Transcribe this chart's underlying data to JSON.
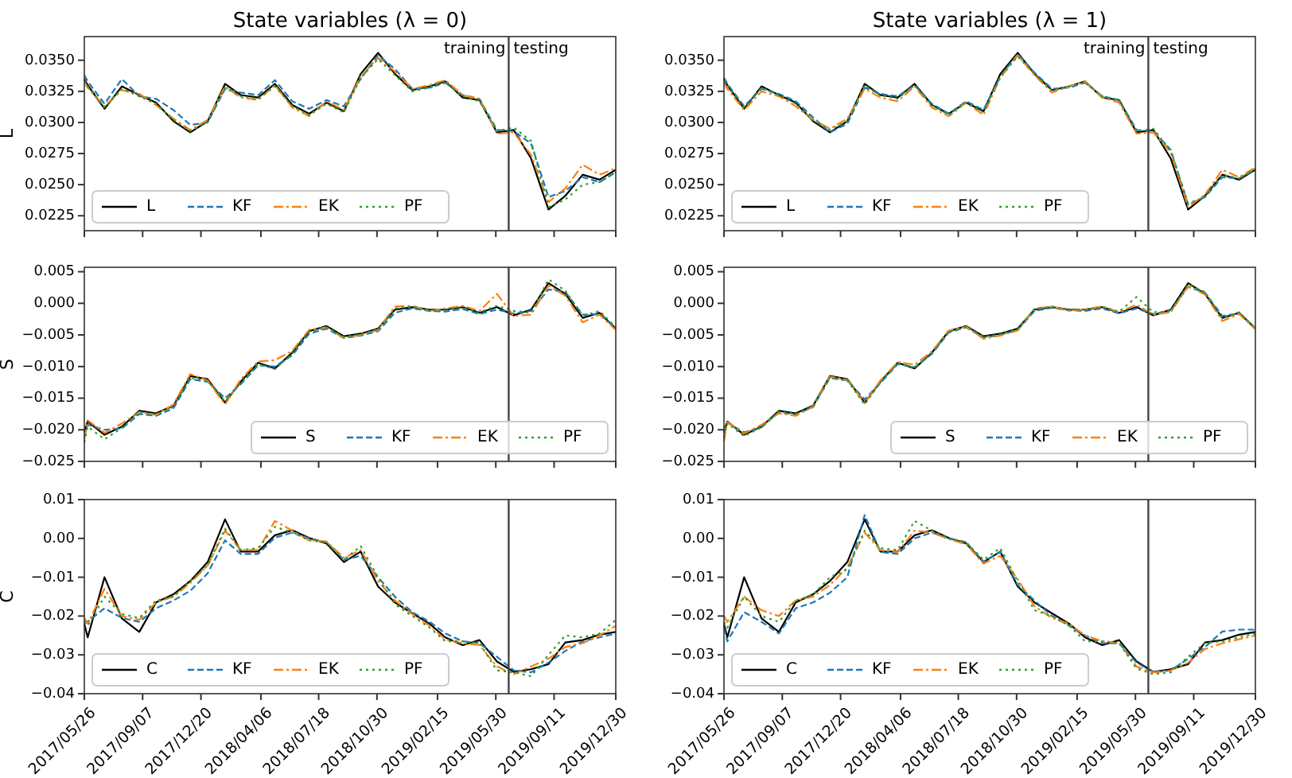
{
  "chart_data": [
    {
      "type": "line",
      "title": "State variables (λ = 0)",
      "ylabel": "L",
      "x": [
        "2017-05-26",
        "2017-06-01",
        "2017-07-01",
        "2017-08-01",
        "2017-09-01",
        "2017-10-01",
        "2017-11-01",
        "2017-12-01",
        "2018-01-01",
        "2018-02-01",
        "2018-03-01",
        "2018-04-01",
        "2018-05-01",
        "2018-06-01",
        "2018-07-01",
        "2018-08-01",
        "2018-09-01",
        "2018-10-01",
        "2018-11-01",
        "2018-12-01",
        "2019-01-01",
        "2019-02-01",
        "2019-03-01",
        "2019-04-01",
        "2019-05-01",
        "2019-06-01",
        "2019-07-01",
        "2019-08-01",
        "2019-09-01",
        "2019-10-01",
        "2019-11-01",
        "2019-12-01",
        "2019-12-30"
      ],
      "xlim": [
        "2017-05-26",
        "2019-12-30"
      ],
      "xticks": [
        {
          "value": "2017-05-26",
          "label": null
        },
        {
          "value": "2017-09-07",
          "label": null
        },
        {
          "value": "2017-12-20",
          "label": null
        },
        {
          "value": "2018-04-06",
          "label": null
        },
        {
          "value": "2018-07-18",
          "label": null
        },
        {
          "value": "2018-10-30",
          "label": null
        },
        {
          "value": "2019-02-15",
          "label": null
        },
        {
          "value": "2019-05-30",
          "label": null
        },
        {
          "value": "2019-09-11",
          "label": null
        },
        {
          "value": "2019-12-30",
          "label": null
        }
      ],
      "ylim": [
        0.0213,
        0.0369
      ],
      "yticks": [
        {
          "value": 0.0225,
          "label": "0.0225"
        },
        {
          "value": 0.025,
          "label": "0.0250"
        },
        {
          "value": 0.0275,
          "label": "0.0275"
        },
        {
          "value": 0.03,
          "label": "0.0300"
        },
        {
          "value": 0.0325,
          "label": "0.0325"
        },
        {
          "value": 0.035,
          "label": "0.0350"
        }
      ],
      "tick_labels": "y",
      "legend": "bottom left",
      "ref_lines": [
        {
          "axis": "x",
          "value": "2019-06-22",
          "color": "#444444"
        }
      ],
      "annotations": [
        "training",
        "testing"
      ],
      "series": [
        {
          "name": "L",
          "color": "#000000",
          "line_style": "solid",
          "values": [
            0.0335,
            0.033,
            0.0311,
            0.0329,
            0.0322,
            0.0316,
            0.0301,
            0.0292,
            0.0301,
            0.0331,
            0.0322,
            0.032,
            0.0331,
            0.0314,
            0.0307,
            0.0316,
            0.0309,
            0.0339,
            0.0356,
            0.0339,
            0.0326,
            0.0329,
            0.0333,
            0.032,
            0.0318,
            0.0292,
            0.0294,
            0.0271,
            0.023,
            0.0241,
            0.0258,
            0.0254,
            0.0262
          ]
        },
        {
          "name": "KF",
          "color": "#1f77b4",
          "line_style": "dashed",
          "values": [
            0.0338,
            0.0333,
            0.0315,
            0.0335,
            0.0321,
            0.0319,
            0.031,
            0.0298,
            0.03,
            0.0327,
            0.0324,
            0.0322,
            0.0334,
            0.0317,
            0.0311,
            0.0318,
            0.0313,
            0.0335,
            0.0354,
            0.0343,
            0.0327,
            0.0328,
            0.0332,
            0.0322,
            0.0319,
            0.0294,
            0.0293,
            0.0283,
            0.024,
            0.0245,
            0.0256,
            0.0252,
            0.026
          ]
        },
        {
          "name": "EK",
          "color": "#ff7f0e",
          "line_style": "dashdot",
          "values": [
            0.0333,
            0.0328,
            0.0313,
            0.0326,
            0.0323,
            0.0314,
            0.0303,
            0.0294,
            0.0302,
            0.0329,
            0.032,
            0.0318,
            0.033,
            0.0312,
            0.0305,
            0.0317,
            0.031,
            0.0337,
            0.0352,
            0.0341,
            0.0327,
            0.033,
            0.0334,
            0.0322,
            0.0319,
            0.0291,
            0.0292,
            0.0274,
            0.0236,
            0.0247,
            0.0266,
            0.0258,
            0.0263
          ]
        },
        {
          "name": "PF",
          "color": "#2ca02c",
          "line_style": "dotted",
          "values": [
            0.0334,
            0.0329,
            0.0312,
            0.0327,
            0.0321,
            0.0315,
            0.0302,
            0.0293,
            0.03,
            0.0328,
            0.0321,
            0.0319,
            0.0329,
            0.0313,
            0.0306,
            0.0315,
            0.0308,
            0.0336,
            0.0351,
            0.0338,
            0.0325,
            0.0328,
            0.0332,
            0.0321,
            0.0317,
            0.0293,
            0.0296,
            0.0285,
            0.0232,
            0.0238,
            0.025,
            0.0252,
            0.026
          ]
        }
      ]
    },
    {
      "type": "line",
      "title": "State variables (λ = 1)",
      "x": [
        "2017-05-26",
        "2017-06-01",
        "2017-07-01",
        "2017-08-01",
        "2017-09-01",
        "2017-10-01",
        "2017-11-01",
        "2017-12-01",
        "2018-01-01",
        "2018-02-01",
        "2018-03-01",
        "2018-04-01",
        "2018-05-01",
        "2018-06-01",
        "2018-07-01",
        "2018-08-01",
        "2018-09-01",
        "2018-10-01",
        "2018-11-01",
        "2018-12-01",
        "2019-01-01",
        "2019-02-01",
        "2019-03-01",
        "2019-04-01",
        "2019-05-01",
        "2019-06-01",
        "2019-07-01",
        "2019-08-01",
        "2019-09-01",
        "2019-10-01",
        "2019-11-01",
        "2019-12-01",
        "2019-12-30"
      ],
      "xlim": [
        "2017-05-26",
        "2019-12-30"
      ],
      "xticks": [
        {
          "value": "2017-05-26",
          "label": null
        },
        {
          "value": "2017-09-07",
          "label": null
        },
        {
          "value": "2017-12-20",
          "label": null
        },
        {
          "value": "2018-04-06",
          "label": null
        },
        {
          "value": "2018-07-18",
          "label": null
        },
        {
          "value": "2018-10-30",
          "label": null
        },
        {
          "value": "2019-02-15",
          "label": null
        },
        {
          "value": "2019-05-30",
          "label": null
        },
        {
          "value": "2019-09-11",
          "label": null
        },
        {
          "value": "2019-12-30",
          "label": null
        }
      ],
      "ylim": [
        0.0213,
        0.0369
      ],
      "yticks": [
        {
          "value": 0.0225,
          "label": "0.0225"
        },
        {
          "value": 0.025,
          "label": "0.0250"
        },
        {
          "value": 0.0275,
          "label": "0.0275"
        },
        {
          "value": 0.03,
          "label": "0.0300"
        },
        {
          "value": 0.0325,
          "label": "0.0325"
        },
        {
          "value": 0.035,
          "label": "0.0350"
        }
      ],
      "tick_labels": "y",
      "legend": "bottom left",
      "ref_lines": [
        {
          "axis": "x",
          "value": "2019-06-22",
          "color": "#444444"
        }
      ],
      "annotations": [
        "training",
        "testing"
      ],
      "series": [
        {
          "name": "L",
          "color": "#000000",
          "line_style": "solid",
          "values": [
            0.0335,
            0.033,
            0.0311,
            0.0329,
            0.0322,
            0.0316,
            0.0301,
            0.0292,
            0.0301,
            0.0331,
            0.0322,
            0.032,
            0.0331,
            0.0314,
            0.0307,
            0.0316,
            0.0309,
            0.0339,
            0.0356,
            0.0339,
            0.0326,
            0.0329,
            0.0333,
            0.032,
            0.0318,
            0.0292,
            0.0294,
            0.0271,
            0.023,
            0.0241,
            0.0258,
            0.0254,
            0.0262
          ]
        },
        {
          "name": "KF",
          "color": "#1f77b4",
          "line_style": "dashed",
          "values": [
            0.0336,
            0.0331,
            0.0313,
            0.0327,
            0.0323,
            0.0317,
            0.0304,
            0.0292,
            0.0299,
            0.0328,
            0.0323,
            0.0321,
            0.033,
            0.0315,
            0.0307,
            0.0317,
            0.031,
            0.0337,
            0.0355,
            0.034,
            0.0327,
            0.0328,
            0.0332,
            0.0321,
            0.0318,
            0.0294,
            0.0293,
            0.0278,
            0.0234,
            0.024,
            0.0256,
            0.0255,
            0.0262
          ]
        },
        {
          "name": "EK",
          "color": "#ff7f0e",
          "line_style": "dashdot",
          "values": [
            0.0332,
            0.0327,
            0.031,
            0.0325,
            0.0321,
            0.0313,
            0.0302,
            0.0295,
            0.0303,
            0.0327,
            0.032,
            0.0317,
            0.0329,
            0.0312,
            0.0305,
            0.0316,
            0.0306,
            0.0336,
            0.0354,
            0.0338,
            0.0324,
            0.0329,
            0.0333,
            0.032,
            0.0316,
            0.0291,
            0.0292,
            0.0276,
            0.0232,
            0.0242,
            0.0262,
            0.0256,
            0.0264
          ]
        },
        {
          "name": "PF",
          "color": "#2ca02c",
          "line_style": "dotted",
          "values": [
            0.0334,
            0.033,
            0.0312,
            0.0328,
            0.0322,
            0.0315,
            0.0302,
            0.0294,
            0.0301,
            0.033,
            0.0322,
            0.0319,
            0.033,
            0.0314,
            0.0306,
            0.0316,
            0.0308,
            0.0337,
            0.0353,
            0.0339,
            0.0326,
            0.0329,
            0.0332,
            0.0321,
            0.0318,
            0.0293,
            0.0295,
            0.0277,
            0.0235,
            0.024,
            0.0258,
            0.0255,
            0.0263
          ]
        }
      ]
    },
    {
      "type": "line",
      "ylabel": "S",
      "x": [
        "2017-05-26",
        "2017-06-01",
        "2017-07-01",
        "2017-08-01",
        "2017-09-01",
        "2017-10-01",
        "2017-11-01",
        "2017-12-01",
        "2018-01-01",
        "2018-02-01",
        "2018-03-01",
        "2018-04-01",
        "2018-05-01",
        "2018-06-01",
        "2018-07-01",
        "2018-08-01",
        "2018-09-01",
        "2018-10-01",
        "2018-11-01",
        "2018-12-01",
        "2019-01-01",
        "2019-02-01",
        "2019-03-01",
        "2019-04-01",
        "2019-05-01",
        "2019-06-01",
        "2019-07-01",
        "2019-08-01",
        "2019-09-01",
        "2019-10-01",
        "2019-11-01",
        "2019-12-01",
        "2019-12-30"
      ],
      "xlim": [
        "2017-05-26",
        "2019-12-30"
      ],
      "xticks": [
        {
          "value": "2017-05-26",
          "label": null
        },
        {
          "value": "2017-09-07",
          "label": null
        },
        {
          "value": "2017-12-20",
          "label": null
        },
        {
          "value": "2018-04-06",
          "label": null
        },
        {
          "value": "2018-07-18",
          "label": null
        },
        {
          "value": "2018-10-30",
          "label": null
        },
        {
          "value": "2019-02-15",
          "label": null
        },
        {
          "value": "2019-05-30",
          "label": null
        },
        {
          "value": "2019-09-11",
          "label": null
        },
        {
          "value": "2019-12-30",
          "label": null
        }
      ],
      "ylim": [
        -0.025,
        0.0057
      ],
      "yticks": [
        {
          "value": -0.025,
          "label": "−0.025"
        },
        {
          "value": -0.02,
          "label": "−0.020"
        },
        {
          "value": -0.015,
          "label": "−0.015"
        },
        {
          "value": -0.01,
          "label": "−0.010"
        },
        {
          "value": -0.005,
          "label": "−0.005"
        },
        {
          "value": 0,
          "label": "0.000"
        },
        {
          "value": 0.005,
          "label": "0.005"
        }
      ],
      "tick_labels": "y",
      "legend": "bottom right",
      "ref_lines": [
        {
          "axis": "x",
          "value": "2019-06-22",
          "color": "#444444"
        }
      ],
      "series": [
        {
          "name": "S",
          "color": "#000000",
          "line_style": "solid",
          "values": [
            -0.0204,
            -0.0187,
            -0.0208,
            -0.0195,
            -0.017,
            -0.0174,
            -0.0162,
            -0.0115,
            -0.012,
            -0.0157,
            -0.0124,
            -0.0094,
            -0.0103,
            -0.0078,
            -0.0044,
            -0.0036,
            -0.0052,
            -0.0048,
            -0.004,
            -0.001,
            -0.0006,
            -0.001,
            -0.001,
            -0.0006,
            -0.0015,
            -0.0006,
            -0.0019,
            -0.001,
            0.0032,
            0.0015,
            -0.0023,
            -0.0015,
            -0.004
          ]
        },
        {
          "name": "KF",
          "color": "#1f77b4",
          "line_style": "dashed",
          "values": [
            -0.021,
            -0.0192,
            -0.02,
            -0.0198,
            -0.0175,
            -0.0178,
            -0.0166,
            -0.012,
            -0.0124,
            -0.015,
            -0.0128,
            -0.0098,
            -0.01,
            -0.0082,
            -0.0048,
            -0.004,
            -0.0055,
            -0.0051,
            -0.0044,
            -0.0015,
            -0.0008,
            -0.0012,
            -0.0013,
            -0.0009,
            -0.0017,
            -0.001,
            -0.0016,
            -0.0012,
            0.0022,
            0.0018,
            -0.0018,
            -0.0017,
            -0.0038
          ]
        },
        {
          "name": "EK",
          "color": "#ff7f0e",
          "line_style": "dashdot",
          "values": [
            -0.0215,
            -0.0185,
            -0.0205,
            -0.019,
            -0.0172,
            -0.0176,
            -0.016,
            -0.0112,
            -0.0122,
            -0.016,
            -0.012,
            -0.0092,
            -0.009,
            -0.0075,
            -0.0042,
            -0.0038,
            -0.0055,
            -0.005,
            -0.0042,
            -0.0005,
            -0.0004,
            -0.0012,
            -0.0008,
            -0.0004,
            -0.0012,
            0.0015,
            -0.002,
            -0.0018,
            0.0028,
            0.0012,
            -0.003,
            -0.0018,
            -0.0042
          ]
        },
        {
          "name": "PF",
          "color": "#2ca02c",
          "line_style": "dotted",
          "values": [
            -0.022,
            -0.0195,
            -0.0215,
            -0.0197,
            -0.0172,
            -0.0176,
            -0.0164,
            -0.0118,
            -0.0123,
            -0.0155,
            -0.0126,
            -0.0096,
            -0.0104,
            -0.008,
            -0.0045,
            -0.0038,
            -0.0053,
            -0.0049,
            -0.0041,
            -0.0008,
            -0.0005,
            -0.0011,
            -0.0011,
            -0.0007,
            -0.0014,
            -0.0004,
            -0.0012,
            -0.0015,
            0.0038,
            0.002,
            -0.002,
            -0.0012,
            -0.0038
          ]
        }
      ]
    },
    {
      "type": "line",
      "x": [
        "2017-05-26",
        "2017-06-01",
        "2017-07-01",
        "2017-08-01",
        "2017-09-01",
        "2017-10-01",
        "2017-11-01",
        "2017-12-01",
        "2018-01-01",
        "2018-02-01",
        "2018-03-01",
        "2018-04-01",
        "2018-05-01",
        "2018-06-01",
        "2018-07-01",
        "2018-08-01",
        "2018-09-01",
        "2018-10-01",
        "2018-11-01",
        "2018-12-01",
        "2019-01-01",
        "2019-02-01",
        "2019-03-01",
        "2019-04-01",
        "2019-05-01",
        "2019-06-01",
        "2019-07-01",
        "2019-08-01",
        "2019-09-01",
        "2019-10-01",
        "2019-11-01",
        "2019-12-01",
        "2019-12-30"
      ],
      "xlim": [
        "2017-05-26",
        "2019-12-30"
      ],
      "xticks": [
        {
          "value": "2017-05-26",
          "label": null
        },
        {
          "value": "2017-09-07",
          "label": null
        },
        {
          "value": "2017-12-20",
          "label": null
        },
        {
          "value": "2018-04-06",
          "label": null
        },
        {
          "value": "2018-07-18",
          "label": null
        },
        {
          "value": "2018-10-30",
          "label": null
        },
        {
          "value": "2019-02-15",
          "label": null
        },
        {
          "value": "2019-05-30",
          "label": null
        },
        {
          "value": "2019-09-11",
          "label": null
        },
        {
          "value": "2019-12-30",
          "label": null
        }
      ],
      "ylim": [
        -0.025,
        0.0057
      ],
      "yticks": [
        {
          "value": -0.025,
          "label": "−0.025"
        },
        {
          "value": -0.02,
          "label": "−0.020"
        },
        {
          "value": -0.015,
          "label": "−0.015"
        },
        {
          "value": -0.01,
          "label": "−0.010"
        },
        {
          "value": -0.005,
          "label": "−0.005"
        },
        {
          "value": 0,
          "label": "0.000"
        },
        {
          "value": 0.005,
          "label": "0.005"
        }
      ],
      "tick_labels": "y",
      "legend": "bottom right",
      "ref_lines": [
        {
          "axis": "x",
          "value": "2019-06-22",
          "color": "#444444"
        }
      ],
      "series": [
        {
          "name": "S",
          "color": "#000000",
          "line_style": "solid",
          "values": [
            -0.0204,
            -0.0187,
            -0.0208,
            -0.0195,
            -0.017,
            -0.0174,
            -0.0162,
            -0.0115,
            -0.012,
            -0.0157,
            -0.0124,
            -0.0094,
            -0.0103,
            -0.0078,
            -0.0044,
            -0.0036,
            -0.0052,
            -0.0048,
            -0.004,
            -0.001,
            -0.0006,
            -0.001,
            -0.001,
            -0.0006,
            -0.0015,
            -0.0006,
            -0.0019,
            -0.001,
            0.0032,
            0.0015,
            -0.0023,
            -0.0015,
            -0.004
          ]
        },
        {
          "name": "KF",
          "color": "#1f77b4",
          "line_style": "dashed",
          "values": [
            -0.0206,
            -0.0189,
            -0.0204,
            -0.0196,
            -0.0172,
            -0.0176,
            -0.0164,
            -0.0118,
            -0.0122,
            -0.0152,
            -0.0126,
            -0.0096,
            -0.0101,
            -0.008,
            -0.0046,
            -0.0038,
            -0.0054,
            -0.005,
            -0.0042,
            -0.0012,
            -0.0007,
            -0.0011,
            -0.0012,
            -0.0008,
            -0.0016,
            -0.0008,
            -0.0017,
            -0.0011,
            0.0026,
            0.0017,
            -0.002,
            -0.0016,
            -0.0039
          ]
        },
        {
          "name": "EK",
          "color": "#ff7f0e",
          "line_style": "dashdot",
          "values": [
            -0.0218,
            -0.0188,
            -0.0206,
            -0.0192,
            -0.0174,
            -0.0178,
            -0.0163,
            -0.0116,
            -0.0121,
            -0.0158,
            -0.0122,
            -0.0093,
            -0.0097,
            -0.0076,
            -0.0043,
            -0.0037,
            -0.0056,
            -0.0051,
            -0.0043,
            -0.0008,
            -0.0005,
            -0.0012,
            -0.0009,
            -0.0005,
            -0.0014,
            -0.0002,
            -0.0018,
            -0.0014,
            0.0027,
            0.0014,
            -0.0028,
            -0.0017,
            -0.0041
          ]
        },
        {
          "name": "PF",
          "color": "#2ca02c",
          "line_style": "dotted",
          "values": [
            -0.0212,
            -0.019,
            -0.021,
            -0.0196,
            -0.0171,
            -0.0175,
            -0.0163,
            -0.0117,
            -0.0122,
            -0.016,
            -0.0125,
            -0.0095,
            -0.0102,
            -0.0079,
            -0.0045,
            -0.0037,
            -0.0053,
            -0.0049,
            -0.0041,
            -0.0009,
            -0.0005,
            -0.001,
            -0.001,
            -0.0006,
            -0.0013,
            0.001,
            -0.0014,
            -0.0013,
            0.003,
            0.0018,
            -0.0024,
            -0.0014,
            -0.0039
          ]
        }
      ]
    },
    {
      "type": "line",
      "ylabel": "C",
      "x": [
        "2017-05-26",
        "2017-06-01",
        "2017-07-01",
        "2017-08-01",
        "2017-09-01",
        "2017-10-01",
        "2017-11-01",
        "2017-12-01",
        "2018-01-01",
        "2018-02-01",
        "2018-03-01",
        "2018-04-01",
        "2018-05-01",
        "2018-06-01",
        "2018-07-01",
        "2018-08-01",
        "2018-09-01",
        "2018-10-01",
        "2018-11-01",
        "2018-12-01",
        "2019-01-01",
        "2019-02-01",
        "2019-03-01",
        "2019-04-01",
        "2019-05-01",
        "2019-06-01",
        "2019-07-01",
        "2019-08-01",
        "2019-09-01",
        "2019-10-01",
        "2019-11-01",
        "2019-12-01",
        "2019-12-30"
      ],
      "xlim": [
        "2017-05-26",
        "2019-12-30"
      ],
      "xticks": [
        {
          "value": "2017-05-26",
          "label": "2017/05/26"
        },
        {
          "value": "2017-09-07",
          "label": "2017/09/07"
        },
        {
          "value": "2017-12-20",
          "label": "2017/12/20"
        },
        {
          "value": "2018-04-06",
          "label": "2018/04/06"
        },
        {
          "value": "2018-07-18",
          "label": "2018/07/18"
        },
        {
          "value": "2018-10-30",
          "label": "2018/10/30"
        },
        {
          "value": "2019-02-15",
          "label": "2019/02/15"
        },
        {
          "value": "2019-05-30",
          "label": "2019/05/30"
        },
        {
          "value": "2019-09-11",
          "label": "2019/09/11"
        },
        {
          "value": "2019-12-30",
          "label": "2019/12/30"
        }
      ],
      "ylim": [
        -0.04,
        0.01
      ],
      "yticks": [
        {
          "value": -0.04,
          "label": "−0.04"
        },
        {
          "value": -0.03,
          "label": "−0.03"
        },
        {
          "value": -0.02,
          "label": "−0.02"
        },
        {
          "value": -0.01,
          "label": "−0.01"
        },
        {
          "value": 0,
          "label": "0.00"
        },
        {
          "value": 0.01,
          "label": "0.01"
        }
      ],
      "legend": "bottom left",
      "ref_lines": [
        {
          "axis": "x",
          "value": "2019-06-22",
          "color": "#444444"
        }
      ],
      "series": [
        {
          "name": "C",
          "color": "#000000",
          "line_style": "solid",
          "values": [
            -0.022,
            -0.0255,
            -0.01,
            -0.0206,
            -0.0241,
            -0.0165,
            -0.0144,
            -0.011,
            -0.0061,
            0.0049,
            -0.0034,
            -0.0034,
            0.0008,
            0.0021,
            0.0001,
            -0.0013,
            -0.0061,
            -0.0034,
            -0.0124,
            -0.0165,
            -0.0193,
            -0.022,
            -0.0255,
            -0.0275,
            -0.0262,
            -0.0317,
            -0.0344,
            -0.0337,
            -0.0324,
            -0.0268,
            -0.0262,
            -0.0248,
            -0.0241
          ]
        },
        {
          "name": "KF",
          "color": "#1f77b4",
          "line_style": "dashed",
          "values": [
            -0.021,
            -0.0215,
            -0.018,
            -0.0205,
            -0.0215,
            -0.018,
            -0.016,
            -0.0135,
            -0.009,
            -0.0005,
            -0.004,
            -0.004,
            0.0002,
            0.0015,
            0.0,
            -0.001,
            -0.0055,
            -0.0045,
            -0.01,
            -0.015,
            -0.019,
            -0.0215,
            -0.0245,
            -0.0265,
            -0.027,
            -0.0305,
            -0.034,
            -0.0345,
            -0.032,
            -0.029,
            -0.0265,
            -0.0255,
            -0.0245
          ]
        },
        {
          "name": "EK",
          "color": "#ff7f0e",
          "line_style": "dashdot",
          "values": [
            -0.0205,
            -0.022,
            -0.013,
            -0.02,
            -0.021,
            -0.0165,
            -0.015,
            -0.0115,
            -0.007,
            0.002,
            -0.003,
            -0.003,
            0.0045,
            0.002,
            -0.0005,
            -0.0008,
            -0.005,
            -0.003,
            -0.011,
            -0.016,
            -0.0195,
            -0.0225,
            -0.026,
            -0.027,
            -0.0275,
            -0.033,
            -0.035,
            -0.033,
            -0.031,
            -0.028,
            -0.027,
            -0.025,
            -0.0225
          ]
        },
        {
          "name": "PF",
          "color": "#2ca02c",
          "line_style": "dotted",
          "values": [
            -0.0215,
            -0.0225,
            -0.015,
            -0.0195,
            -0.0205,
            -0.016,
            -0.015,
            -0.011,
            -0.007,
            0.0025,
            -0.003,
            -0.0025,
            0.003,
            0.0015,
            -0.0005,
            -0.001,
            -0.0055,
            -0.002,
            -0.01,
            -0.017,
            -0.02,
            -0.023,
            -0.0265,
            -0.0265,
            -0.027,
            -0.034,
            -0.0345,
            -0.0355,
            -0.03,
            -0.025,
            -0.0255,
            -0.0245,
            -0.021
          ]
        }
      ]
    },
    {
      "type": "line",
      "x": [
        "2017-05-26",
        "2017-06-01",
        "2017-07-01",
        "2017-08-01",
        "2017-09-01",
        "2017-10-01",
        "2017-11-01",
        "2017-12-01",
        "2018-01-01",
        "2018-02-01",
        "2018-03-01",
        "2018-04-01",
        "2018-05-01",
        "2018-06-01",
        "2018-07-01",
        "2018-08-01",
        "2018-09-01",
        "2018-10-01",
        "2018-11-01",
        "2018-12-01",
        "2019-01-01",
        "2019-02-01",
        "2019-03-01",
        "2019-04-01",
        "2019-05-01",
        "2019-06-01",
        "2019-07-01",
        "2019-08-01",
        "2019-09-01",
        "2019-10-01",
        "2019-11-01",
        "2019-12-01",
        "2019-12-30"
      ],
      "xlim": [
        "2017-05-26",
        "2019-12-30"
      ],
      "xticks": [
        {
          "value": "2017-05-26",
          "label": "2017/05/26"
        },
        {
          "value": "2017-09-07",
          "label": "2017/09/07"
        },
        {
          "value": "2017-12-20",
          "label": "2017/12/20"
        },
        {
          "value": "2018-04-06",
          "label": "2018/04/06"
        },
        {
          "value": "2018-07-18",
          "label": "2018/07/18"
        },
        {
          "value": "2018-10-30",
          "label": "2018/10/30"
        },
        {
          "value": "2019-02-15",
          "label": "2019/02/15"
        },
        {
          "value": "2019-05-30",
          "label": "2019/05/30"
        },
        {
          "value": "2019-09-11",
          "label": "2019/09/11"
        },
        {
          "value": "2019-12-30",
          "label": "2019/12/30"
        }
      ],
      "ylim": [
        -0.04,
        0.01
      ],
      "yticks": [
        {
          "value": -0.04,
          "label": "−0.04"
        },
        {
          "value": -0.03,
          "label": "−0.03"
        },
        {
          "value": -0.02,
          "label": "−0.02"
        },
        {
          "value": -0.01,
          "label": "−0.01"
        },
        {
          "value": 0,
          "label": "0.00"
        },
        {
          "value": 0.01,
          "label": "0.01"
        }
      ],
      "legend": "bottom left",
      "ref_lines": [
        {
          "axis": "x",
          "value": "2019-06-22",
          "color": "#444444"
        }
      ],
      "series": [
        {
          "name": "C",
          "color": "#000000",
          "line_style": "solid",
          "values": [
            -0.022,
            -0.0255,
            -0.01,
            -0.0206,
            -0.0241,
            -0.0165,
            -0.0144,
            -0.011,
            -0.0061,
            0.0049,
            -0.0034,
            -0.0034,
            0.0008,
            0.0021,
            0.0001,
            -0.0013,
            -0.0061,
            -0.0034,
            -0.0124,
            -0.0165,
            -0.0193,
            -0.022,
            -0.0255,
            -0.0275,
            -0.0262,
            -0.0317,
            -0.0344,
            -0.0337,
            -0.0324,
            -0.0268,
            -0.0262,
            -0.0248,
            -0.0241
          ]
        },
        {
          "name": "KF",
          "color": "#1f77b4",
          "line_style": "dashed",
          "values": [
            -0.023,
            -0.0265,
            -0.019,
            -0.0215,
            -0.0245,
            -0.018,
            -0.0165,
            -0.014,
            -0.01,
            0.006,
            -0.0035,
            -0.004,
            0.0,
            0.0015,
            0.0,
            -0.001,
            -0.006,
            -0.0035,
            -0.012,
            -0.016,
            -0.02,
            -0.0225,
            -0.025,
            -0.027,
            -0.027,
            -0.032,
            -0.0345,
            -0.034,
            -0.031,
            -0.028,
            -0.024,
            -0.0235,
            -0.0235
          ]
        },
        {
          "name": "EK",
          "color": "#ff7f0e",
          "line_style": "dashdot",
          "values": [
            -0.02,
            -0.0215,
            -0.015,
            -0.0185,
            -0.02,
            -0.016,
            -0.015,
            -0.012,
            -0.0075,
            0.0015,
            -0.003,
            -0.0035,
            0.002,
            0.0015,
            -0.0002,
            -0.0015,
            -0.0065,
            -0.0045,
            -0.0105,
            -0.0175,
            -0.0205,
            -0.022,
            -0.025,
            -0.0265,
            -0.027,
            -0.033,
            -0.0345,
            -0.034,
            -0.032,
            -0.0285,
            -0.027,
            -0.026,
            -0.025
          ]
        },
        {
          "name": "PF",
          "color": "#2ca02c",
          "line_style": "dotted",
          "values": [
            -0.0215,
            -0.023,
            -0.015,
            -0.02,
            -0.0215,
            -0.016,
            -0.0145,
            -0.01,
            -0.008,
            0.002,
            -0.0025,
            -0.003,
            0.0045,
            0.002,
            0.0,
            -0.001,
            -0.0055,
            -0.0025,
            -0.011,
            -0.0185,
            -0.02,
            -0.0225,
            -0.0265,
            -0.0265,
            -0.027,
            -0.0335,
            -0.035,
            -0.0345,
            -0.0305,
            -0.027,
            -0.0265,
            -0.0255,
            -0.0245
          ]
        }
      ]
    }
  ]
}
